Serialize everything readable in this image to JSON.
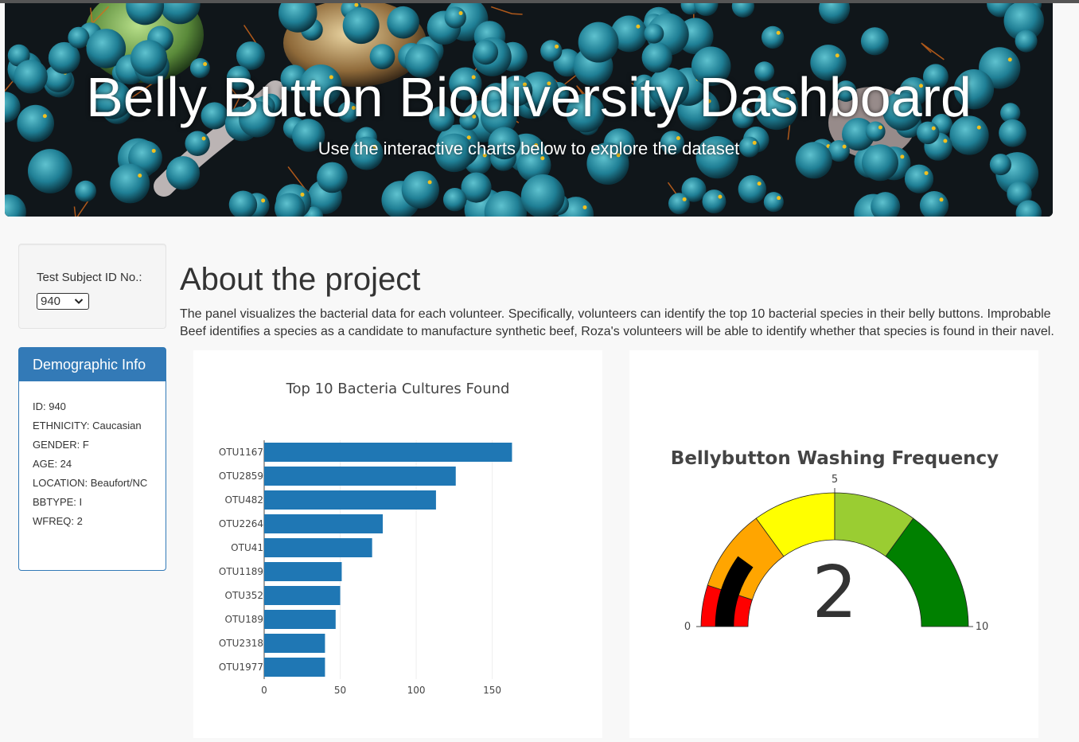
{
  "header": {
    "title": "Belly Button Biodiversity Dashboard",
    "subtitle": "Use the interactive charts below to explore the dataset"
  },
  "selector": {
    "label": "Test Subject ID No.:",
    "selected": "940"
  },
  "demographics": {
    "heading": "Demographic Info",
    "rows": [
      "ID: 940",
      "ETHNICITY: Caucasian",
      "GENDER: F",
      "AGE: 24",
      "LOCATION: Beaufort/NC",
      "BBTYPE: I",
      "WFREQ: 2"
    ]
  },
  "about": {
    "title": "About the project",
    "text": "The panel visualizes the bacterial data for each volunteer. Specifically, volunteers can identify the top 10 bacterial species in their belly buttons. Improbable Beef identifies a species as a candidate to manufacture synthetic beef, Roza's volunteers will be able to identify whether that species is found in their navel."
  },
  "chart_data": [
    {
      "type": "bar",
      "orientation": "horizontal",
      "title": "Top 10 Bacteria Cultures Found",
      "categories": [
        "OTU1167",
        "OTU2859",
        "OTU482",
        "OTU2264",
        "OTU41",
        "OTU1189",
        "OTU352",
        "OTU189",
        "OTU2318",
        "OTU1977"
      ],
      "values": [
        163,
        126,
        113,
        78,
        71,
        51,
        50,
        47,
        40,
        40
      ],
      "xlim": [
        0,
        168
      ],
      "xticks": [
        0,
        50,
        100,
        150
      ],
      "color": "#1f77b4",
      "grid": true
    },
    {
      "type": "gauge",
      "title": "Bellybutton Washing Frequency",
      "value": 2,
      "range": [
        0,
        10
      ],
      "ticks": [
        0,
        5,
        10
      ],
      "steps": [
        {
          "range": [
            0,
            1
          ],
          "color": "#ff0000"
        },
        {
          "range": [
            1,
            3
          ],
          "color": "#ffa500"
        },
        {
          "range": [
            3,
            5
          ],
          "color": "#ffff00"
        },
        {
          "range": [
            5,
            7
          ],
          "color": "#9acd32"
        },
        {
          "range": [
            7,
            10
          ],
          "color": "#008000"
        }
      ],
      "bar_color": "#000000"
    }
  ]
}
